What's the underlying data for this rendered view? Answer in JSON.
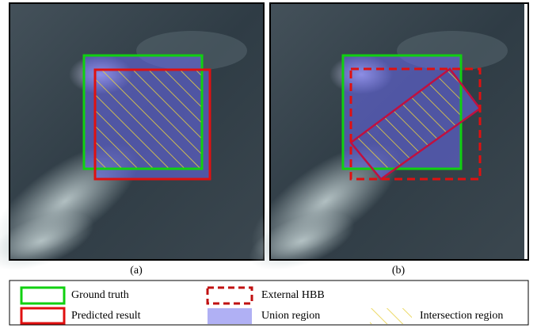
{
  "panels": [
    {
      "label": "(a)"
    },
    {
      "label": "(b)"
    }
  ],
  "legend": {
    "ground_truth": "Ground truth",
    "predicted_result": "Predicted result",
    "external_hbb": "External HBB",
    "union_region": "Union region",
    "intersection_region": "Intersection region"
  }
}
